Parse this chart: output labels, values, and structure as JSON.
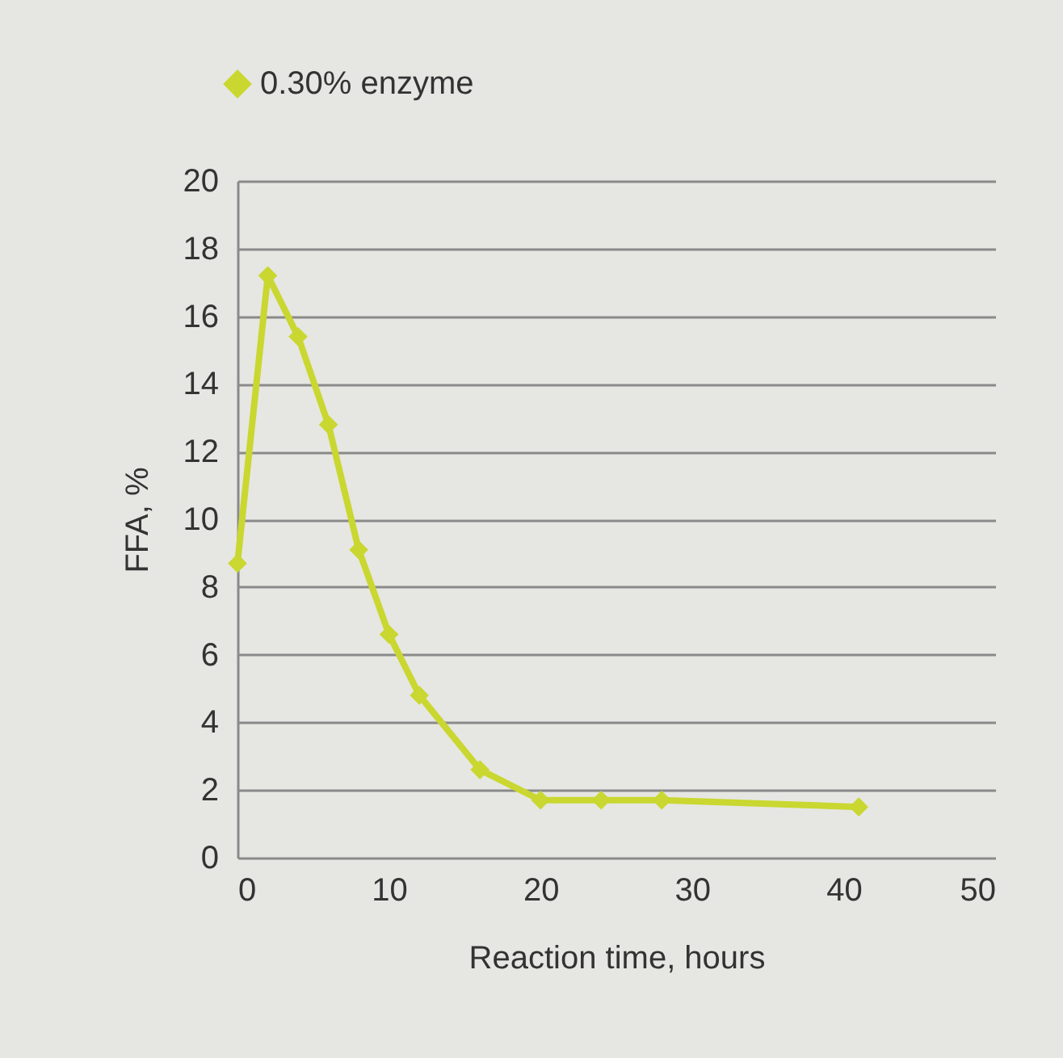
{
  "chart_data": {
    "type": "line",
    "xlabel": "Reaction time, hours",
    "ylabel": "FFA, %",
    "x": [
      0,
      2,
      4,
      6,
      8,
      10,
      12,
      16,
      20,
      24,
      28,
      41
    ],
    "series": [
      {
        "name": "0.30% enzyme",
        "color": "#c9d730",
        "values": [
          8.7,
          17.2,
          15.4,
          12.8,
          9.1,
          6.6,
          4.8,
          2.6,
          1.7,
          1.7,
          1.7,
          1.5
        ]
      }
    ],
    "xlim": [
      0,
      50
    ],
    "xticks": [
      0,
      10,
      20,
      30,
      40,
      50
    ],
    "ylim": [
      0,
      20
    ],
    "yticks": [
      0,
      2,
      4,
      6,
      8,
      10,
      12,
      14,
      16,
      18,
      20
    ],
    "grid": "y",
    "legend": "top left",
    "marker": "diamond",
    "line_style": "solid"
  }
}
